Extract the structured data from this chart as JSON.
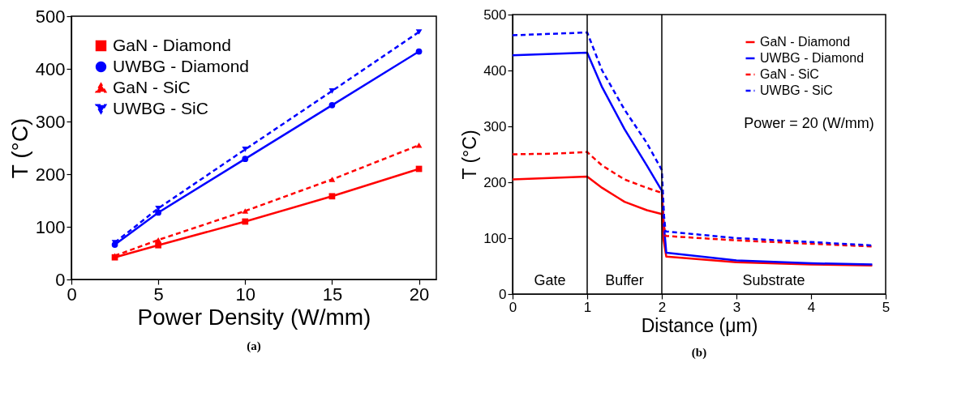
{
  "chart_data": [
    {
      "type": "line",
      "title": "(a)",
      "xlabel": "Power Density (W/mm)",
      "ylabel": "T (°C)",
      "x": [
        2.5,
        5,
        10,
        15,
        20
      ],
      "xlim": [
        0,
        21
      ],
      "xticks": [
        0,
        5,
        10,
        15,
        20
      ],
      "ylim": [
        0,
        500
      ],
      "yticks": [
        0,
        100,
        200,
        300,
        400,
        500
      ],
      "grid": false,
      "legend": "top left",
      "series": [
        {
          "name": "GaN - Diamond",
          "color": "#ff0000",
          "line_style": "solid",
          "marker": "square",
          "values": [
            42,
            65,
            110,
            158,
            210
          ]
        },
        {
          "name": "UWBG - Diamond",
          "color": "#0000ff",
          "line_style": "solid",
          "marker": "circle",
          "values": [
            66,
            127,
            229,
            331,
            433
          ]
        },
        {
          "name": "GaN - SiC",
          "color": "#ff0000",
          "line_style": "dashed",
          "marker": "triangle",
          "values": [
            45,
            75,
            130,
            190,
            255
          ]
        },
        {
          "name": "UWBG - SiC",
          "color": "#0000ff",
          "line_style": "dashed",
          "marker": "triangle-down",
          "values": [
            70,
            135,
            247,
            358,
            470
          ]
        }
      ]
    },
    {
      "type": "line",
      "title": "(b)",
      "xlabel": "Distance (μm)",
      "ylabel": "T (°C)",
      "xlim": [
        0,
        5
      ],
      "xticks": [
        0,
        1,
        2,
        3,
        4,
        5
      ],
      "ylim": [
        0,
        500
      ],
      "yticks": [
        0,
        100,
        200,
        300,
        400,
        500
      ],
      "grid": false,
      "legend": "top right",
      "marker": "none",
      "annotations": [
        "Power = 20 (W/mm)",
        "Gate",
        "Buffer",
        "Substrate"
      ],
      "ref_lines": [
        {
          "axis": "x",
          "value": 1,
          "color": "#000000"
        },
        {
          "axis": "x",
          "value": 2,
          "color": "#000000"
        }
      ],
      "series": [
        {
          "name": "GaN - Diamond",
          "color": "#ff0000",
          "line_style": "solid",
          "x": [
            0,
            1,
            1.2,
            1.5,
            1.8,
            2,
            2.02,
            2.06,
            3,
            4,
            4.82
          ],
          "values": [
            205,
            210,
            190,
            165,
            150,
            143,
            100,
            67,
            57,
            53,
            51
          ]
        },
        {
          "name": "UWBG - Diamond",
          "color": "#0000ff",
          "line_style": "solid",
          "x": [
            0,
            1,
            1.2,
            1.5,
            1.8,
            2,
            2.03,
            2.06,
            3,
            4,
            4.82
          ],
          "values": [
            427,
            432,
            370,
            295,
            230,
            185,
            120,
            74,
            60,
            55,
            53
          ]
        },
        {
          "name": "GaN - SiC",
          "color": "#ff0000",
          "line_style": "dashed",
          "x": [
            0,
            0.5,
            1,
            1.2,
            1.5,
            1.8,
            2,
            2.02,
            2.05,
            3,
            4,
            4.82
          ],
          "values": [
            250,
            251,
            254,
            230,
            205,
            190,
            181,
            130,
            104,
            96,
            90,
            85
          ]
        },
        {
          "name": "UWBG - SiC",
          "color": "#0000ff",
          "line_style": "dashed",
          "x": [
            0,
            1,
            1.2,
            1.5,
            1.8,
            2,
            2.03,
            2.05,
            3,
            4,
            4.82
          ],
          "values": [
            463,
            468,
            400,
            330,
            270,
            222,
            140,
            112,
            100,
            93,
            87
          ]
        }
      ]
    }
  ]
}
